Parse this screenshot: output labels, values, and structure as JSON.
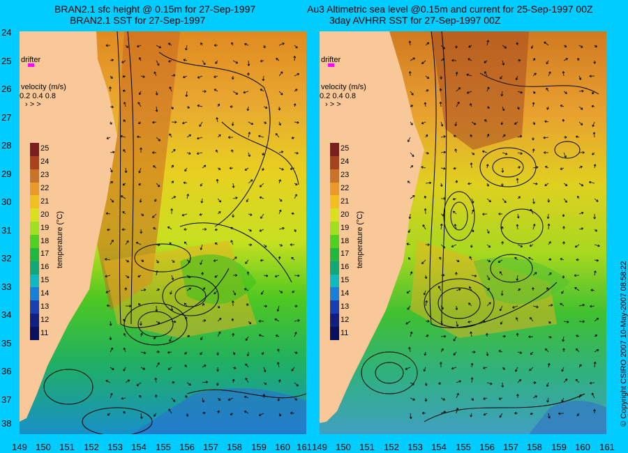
{
  "titles": {
    "left_line1": "BRAN2.1 sfc height @ 0.15m for 27-Sep-1997",
    "left_line2": "BRAN2.1 SST for 27-Sep-1997",
    "right_line1": "Au3 Altimetric sea level  @0.15m and current for 25-Sep-1997 00Z",
    "right_line2": "3day AVHRR SST for 27-Sep-1997 00Z"
  },
  "axes": {
    "latitudes": [
      "24",
      "25",
      "26",
      "27",
      "28",
      "29",
      "30",
      "31",
      "32",
      "33",
      "34",
      "35",
      "36",
      "37",
      "38"
    ],
    "longitudes": [
      "149",
      "150",
      "151",
      "152",
      "153",
      "154",
      "155",
      "156",
      "157",
      "158",
      "159",
      "160",
      "161"
    ]
  },
  "legend": {
    "drifter": "drifter",
    "velocity_title": "velocity (m/s)",
    "velocity_values": "0.2 0.4 0.8",
    "temperature_label": "temperature (°C)",
    "temperature_ticks": [
      "25",
      "24",
      "23",
      "22",
      "21",
      "20",
      "19",
      "18",
      "17",
      "16",
      "15",
      "14",
      "13",
      "12",
      "11"
    ],
    "colors": [
      "#7a1f1f",
      "#a8421c",
      "#c8722a",
      "#e89b2a",
      "#f0c020",
      "#d8e020",
      "#a0e020",
      "#50d020",
      "#20b840",
      "#10a878",
      "#10b8c0",
      "#1880d8",
      "#1840b0",
      "#102080",
      "#081060"
    ]
  },
  "colors": {
    "background": "#00ccff",
    "land": "#f8c898",
    "drifter": "#ff00ff"
  },
  "copyright": "© Copyright CSIRO 2007   10-May-2007 08:58:22"
}
